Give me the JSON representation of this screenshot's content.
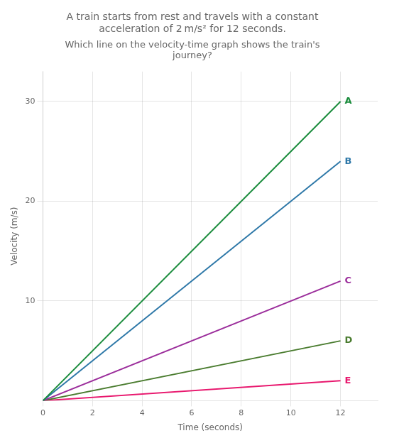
{
  "chart_data": {
    "type": "line",
    "title": [
      "A train starts from rest and travels with a constant",
      "acceleration of 2 m/s² for 12 seconds."
    ],
    "subtitle": [
      "Which line on the velocity-time graph shows the train's",
      "journey?"
    ],
    "xlabel": "Time (seconds)",
    "ylabel": "Velocity (m/s)",
    "x": [
      0,
      12
    ],
    "series": [
      {
        "name": "A",
        "color": "#1a8c3c",
        "values": [
          0,
          30
        ]
      },
      {
        "name": "B",
        "color": "#2e78a8",
        "values": [
          0,
          24
        ]
      },
      {
        "name": "C",
        "color": "#9b2d9b",
        "values": [
          0,
          12
        ]
      },
      {
        "name": "D",
        "color": "#4a7c2f",
        "values": [
          0,
          6
        ]
      },
      {
        "name": "E",
        "color": "#e8186e",
        "values": [
          0,
          2.004
        ]
      }
    ],
    "xlim": [
      0,
      13.5
    ],
    "ylim": [
      0,
      33
    ],
    "xticks": [
      0,
      2,
      4,
      6,
      8,
      10,
      12
    ],
    "yticks": [
      10,
      20,
      30
    ],
    "grid": true
  }
}
